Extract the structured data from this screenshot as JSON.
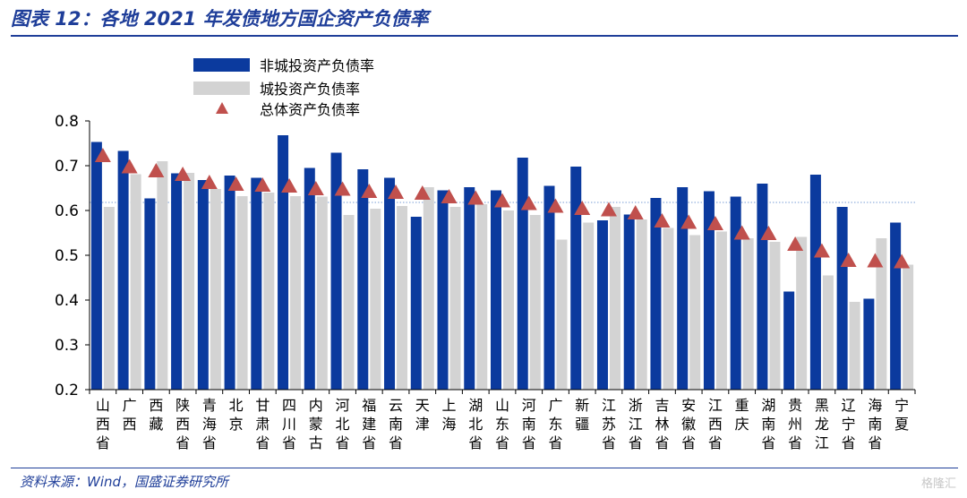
{
  "header": {
    "title": "图表 12：各地 2021 年发债地方国企资产负债率"
  },
  "footer": {
    "source": "资料来源：Wind，国盛证券研究所",
    "watermark": "格隆汇"
  },
  "colors": {
    "title": "#1f3e99",
    "non_chengtou": "#0b3a9e",
    "chengtou": "#d3d3d3",
    "overall": "#c0504d",
    "reference_line": "#7a9ed6"
  },
  "chart_data": {
    "type": "bar",
    "ylim": [
      0.2,
      0.8
    ],
    "yticks": [
      "0.8",
      "0.7",
      "0.6",
      "0.5",
      "0.4",
      "0.3",
      "0.2"
    ],
    "legend_position": "top-left",
    "reference_line_y": 0.618,
    "categories": [
      "山西省",
      "广西",
      "西藏",
      "陕西省",
      "青海省",
      "北京",
      "甘肃省",
      "四川省",
      "内蒙古",
      "河北省",
      "福建省",
      "云南省",
      "天津",
      "上海",
      "湖北省",
      "山东省",
      "河南省",
      "广东省",
      "新疆",
      "江苏省",
      "浙江省",
      "吉林省",
      "安徽省",
      "江西省",
      "重庆",
      "湖南省",
      "贵州省",
      "黑龙江",
      "辽宁省",
      "海南省",
      "宁夏"
    ],
    "series": [
      {
        "name": "非城投资产负债率",
        "kind": "bar",
        "values": [
          0.753,
          0.733,
          0.627,
          0.683,
          0.668,
          0.678,
          0.673,
          0.768,
          0.695,
          0.729,
          0.692,
          0.673,
          0.586,
          0.645,
          0.652,
          0.645,
          0.718,
          0.655,
          0.698,
          0.578,
          0.591,
          0.628,
          0.652,
          0.643,
          0.631,
          0.66,
          0.419,
          0.68,
          0.608,
          0.403,
          0.573
        ]
      },
      {
        "name": "城投资产负债率",
        "kind": "bar",
        "values": [
          0.608,
          0.681,
          0.71,
          0.684,
          0.648,
          0.632,
          0.64,
          0.632,
          0.631,
          0.59,
          0.604,
          0.61,
          0.652,
          0.608,
          0.614,
          0.6,
          0.59,
          0.535,
          0.573,
          0.608,
          0.58,
          0.561,
          0.545,
          0.553,
          0.538,
          0.53,
          0.541,
          0.455,
          0.396,
          0.538,
          0.479
        ]
      },
      {
        "name": "总体资产负债率",
        "kind": "marker",
        "values": [
          0.722,
          0.697,
          0.688,
          0.68,
          0.662,
          0.658,
          0.656,
          0.654,
          0.648,
          0.647,
          0.642,
          0.64,
          0.638,
          0.63,
          0.627,
          0.621,
          0.615,
          0.609,
          0.604,
          0.601,
          0.594,
          0.576,
          0.573,
          0.57,
          0.549,
          0.548,
          0.524,
          0.509,
          0.488,
          0.487,
          0.485
        ]
      }
    ]
  }
}
